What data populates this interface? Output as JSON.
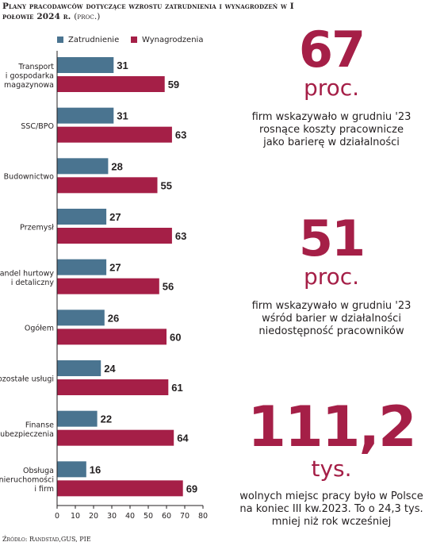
{
  "title_main": "Plany pracodawców dotyczące wzrostu zatrudnienia i wynagrodzeń w I połowie 2024 r.",
  "title_suffix": "(proc.)",
  "legend": {
    "emp": "Zatrudnienie",
    "wage": "Wynagrodzenia"
  },
  "colors": {
    "emp": "#4a7490",
    "wage": "#a51f47",
    "accent": "#a51f47"
  },
  "chart_data": {
    "type": "bar",
    "orientation": "horizontal",
    "title": "Plany pracodawców dotyczące wzrostu zatrudnienia i wynagrodzeń w I połowie 2024 r. (proc.)",
    "categories": [
      "Transport i gospodarka magazynowa",
      "SSC/BPO",
      "Budownictwo",
      "Przemysł",
      "Handel hurtowy i detaliczny",
      "Ogółem",
      "Pozostałe usługi",
      "Finanse i ubezpieczenia",
      "Obsługa nieruchomości i firm"
    ],
    "category_lines": [
      [
        "Transport",
        "i gospodarka",
        "magazynowa"
      ],
      [
        "SSC/BPO"
      ],
      [
        "Budownictwo"
      ],
      [
        "Przemysł"
      ],
      [
        "Handel hurtowy",
        "i detaliczny"
      ],
      [
        "Ogółem"
      ],
      [
        "Pozostałe usługi"
      ],
      [
        "Finanse",
        "i ubezpieczenia"
      ],
      [
        "Obsługa",
        "nieruchomości",
        "i firm"
      ]
    ],
    "series": [
      {
        "name": "Zatrudnienie",
        "values": [
          31,
          31,
          28,
          27,
          27,
          26,
          24,
          22,
          16
        ]
      },
      {
        "name": "Wynagrodzenia",
        "values": [
          59,
          63,
          55,
          63,
          56,
          60,
          61,
          64,
          69
        ]
      }
    ],
    "xlim": [
      0,
      80
    ],
    "xticks": [
      "0",
      "10",
      "20",
      "30",
      "40",
      "50",
      "60",
      "70",
      "80"
    ],
    "legend_position": "top",
    "grid": false
  },
  "stats": [
    {
      "value": "67",
      "unit": "proc.",
      "desc": "firm wskazywało w grudniu '23 rosnące koszty pracownicze jako barierę w działalności"
    },
    {
      "value": "51",
      "unit": "proc.",
      "desc": "firm wskazywało w grudniu '23 wśród barier w działalności niedostępność pracowników"
    },
    {
      "value": "111,2",
      "unit": "tys.",
      "desc": "wolnych miejsc pracy było w Polsce na koniec III kw.2023. To o 24,3 tys. mniej niż rok wcześniej"
    }
  ],
  "source": "Źródło: Randstad,GUS, PIE"
}
